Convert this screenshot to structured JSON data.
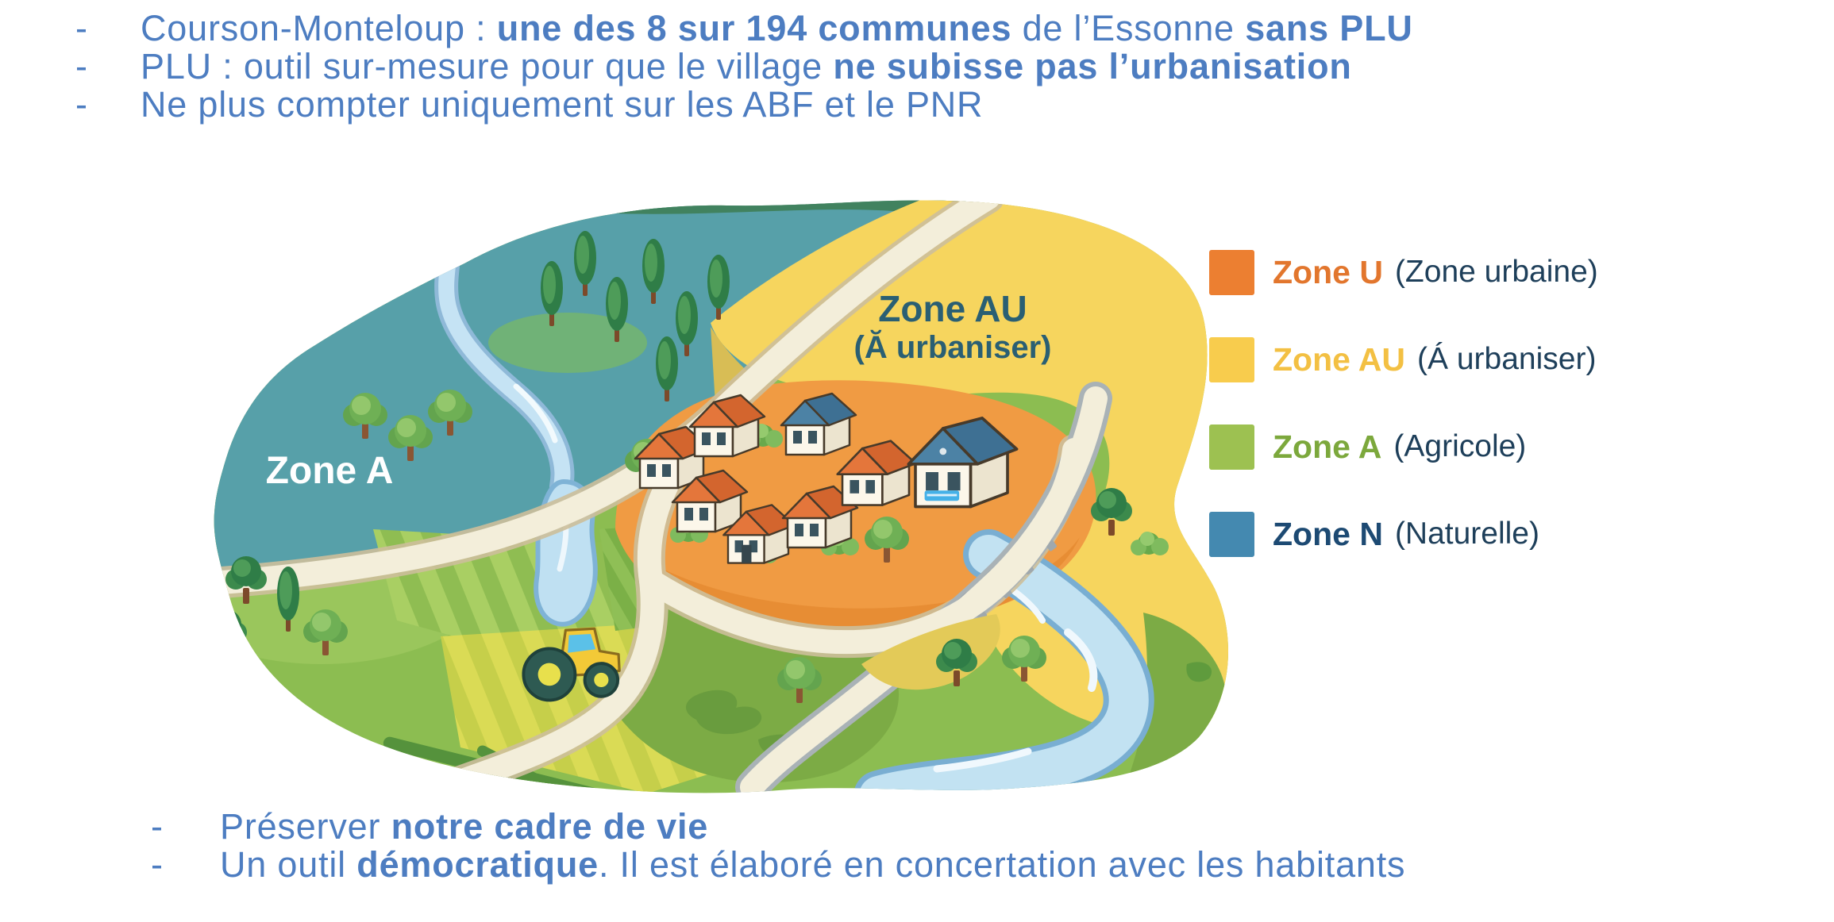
{
  "bullet_marker": "-",
  "top_bullets": [
    {
      "segments": [
        {
          "text": "Courson-Monteloup : ",
          "bold": false
        },
        {
          "text": "une des 8 sur 194 communes",
          "bold": true
        },
        {
          "text": " de l’Essonne ",
          "bold": false
        },
        {
          "text": "sans PLU",
          "bold": true
        }
      ]
    },
    {
      "segments": [
        {
          "text": "PLU : outil sur-mesure pour que le village ",
          "bold": false
        },
        {
          "text": "ne subisse pas l’urbanisation",
          "bold": true
        }
      ]
    },
    {
      "segments": [
        {
          "text": "Ne plus compter uniquement sur les ABF et le PNR",
          "bold": false
        }
      ]
    }
  ],
  "bottom_bullets": [
    {
      "segments": [
        {
          "text": "Préserver ",
          "bold": false
        },
        {
          "text": "notre cadre de vie",
          "bold": true
        }
      ]
    },
    {
      "segments": [
        {
          "text": "Un outil ",
          "bold": false
        },
        {
          "text": "démocratique",
          "bold": true
        },
        {
          "text": ". Il est élaboré en concertation avec les habitants",
          "bold": false
        }
      ]
    }
  ],
  "map": {
    "zone_a_label": "Zone A",
    "zone_au_title": "Zone AU",
    "zone_au_subtitle": "(Ă urbaniser)"
  },
  "legend": {
    "items": [
      {
        "name": "Zone U",
        "description": "(Zone urbaine)",
        "color": "#ec7f31",
        "label_color": "#e2762d"
      },
      {
        "name": "Zone AU",
        "description": "(Á urbaniser)",
        "color": "#f8cc4d",
        "label_color": "#f3c043"
      },
      {
        "name": "Zone A",
        "description": "(Agricole)",
        "color": "#9dc151",
        "label_color": "#7ca83c"
      },
      {
        "name": "Zone N",
        "description": "(Naturelle)",
        "color": "#4489b0",
        "label_color": "#1d4a73"
      }
    ]
  },
  "colors": {
    "bullet_text": "#4d7dc1",
    "legend_text": "#1e3f5a",
    "map_zone_au_text": "#2a5f73",
    "map_zone_a_text": "#ffffff",
    "village_orange": "#f09b43",
    "zone_au_yellow": "#f6d55e",
    "zone_n_teal": "#57a0a9",
    "zone_a_green": "#8cbd51",
    "river_blue": "#c2e2f2",
    "road_cream": "#f3eeda"
  }
}
